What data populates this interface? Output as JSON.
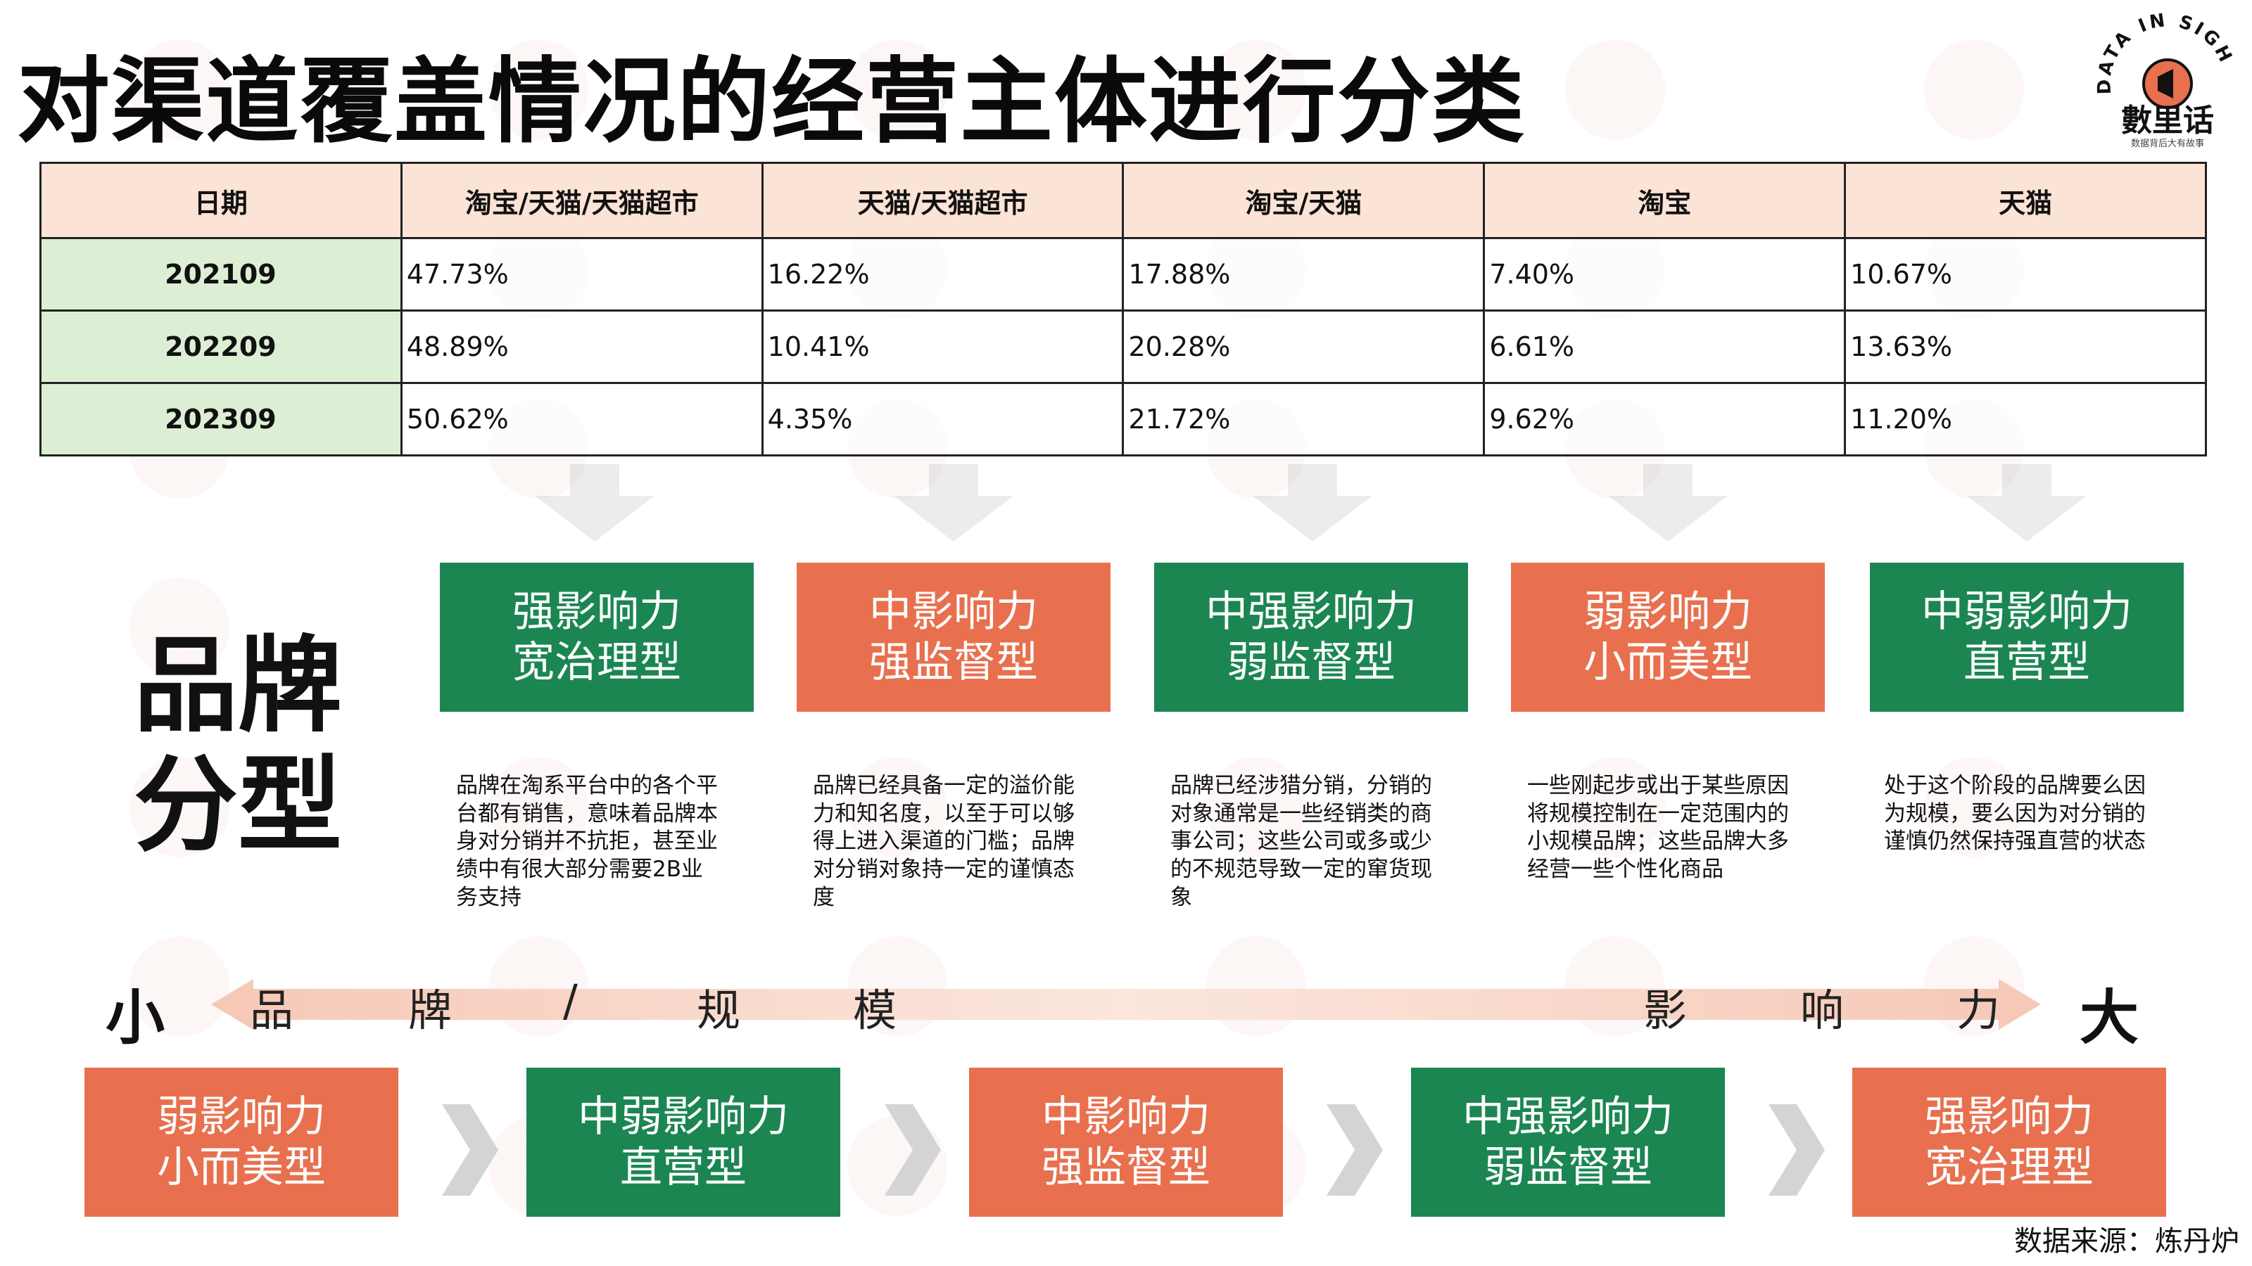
{
  "title": "对渠道覆盖情况的经营主体进行分类",
  "logo": {
    "top": "DATA IN SIGHT",
    "main": "數里话",
    "sub": "数据背后大有故事"
  },
  "colors": {
    "green": "#1b8652",
    "orange": "#e8704f",
    "header_bg": "#fbe3d6",
    "date_bg": "#dcefd4"
  },
  "table": {
    "headers": [
      "日期",
      "淘宝/天猫/天猫超市",
      "天猫/天猫超市",
      "淘宝/天猫",
      "淘宝",
      "天猫"
    ],
    "rows": [
      [
        "202109",
        "47.73%",
        "16.22%",
        "17.88%",
        "7.40%",
        "10.67%"
      ],
      [
        "202209",
        "48.89%",
        "10.41%",
        "20.28%",
        "6.61%",
        "13.63%"
      ],
      [
        "202309",
        "50.62%",
        "4.35%",
        "21.72%",
        "9.62%",
        "11.20%"
      ]
    ]
  },
  "brand_label": {
    "line1": "品牌",
    "line2": "分型"
  },
  "top_types": [
    {
      "line1": "强影响力",
      "line2": "宽治理型",
      "color": "green",
      "desc": "品牌在淘系平台中的各个平台都有销售，意味着品牌本身对分销并不抗拒，甚至业绩中有很大部分需要2B业务支持"
    },
    {
      "line1": "中影响力",
      "line2": "强监督型",
      "color": "orange",
      "desc": "品牌已经具备一定的溢价能力和知名度，以至于可以够得上进入渠道的门槛；品牌对分销对象持一定的谨慎态度"
    },
    {
      "line1": "中强影响力",
      "line2": "弱监督型",
      "color": "green",
      "desc": "品牌已经涉猎分销，分销的对象通常是一些经销类的商事公司；这些公司或多或少的不规范导致一定的窜货现象"
    },
    {
      "line1": "弱影响力",
      "line2": "小而美型",
      "color": "orange",
      "desc": "一些刚起步或出于某些原因将规模控制在一定范围内的小规模品牌；这些品牌大多经营一些个性化商品"
    },
    {
      "line1": "中弱影响力",
      "line2": "直营型",
      "color": "green",
      "desc": "处于这个阶段的品牌要么因为规模，要么因为对分销的谨慎仍然保持强直营的状态"
    }
  ],
  "scale": {
    "left": "小",
    "right": "大",
    "chars": [
      "品",
      "牌",
      "/",
      "规",
      "模",
      "影",
      "响",
      "力"
    ]
  },
  "bottom_types": [
    {
      "line1": "弱影响力",
      "line2": "小而美型",
      "color": "orange"
    },
    {
      "line1": "中弱影响力",
      "line2": "直营型",
      "color": "green"
    },
    {
      "line1": "中影响力",
      "line2": "强监督型",
      "color": "orange"
    },
    {
      "line1": "中强影响力",
      "line2": "弱监督型",
      "color": "green"
    },
    {
      "line1": "强影响力",
      "line2": "宽治理型",
      "color": "orange"
    }
  ],
  "source": "数据来源：炼丹炉"
}
